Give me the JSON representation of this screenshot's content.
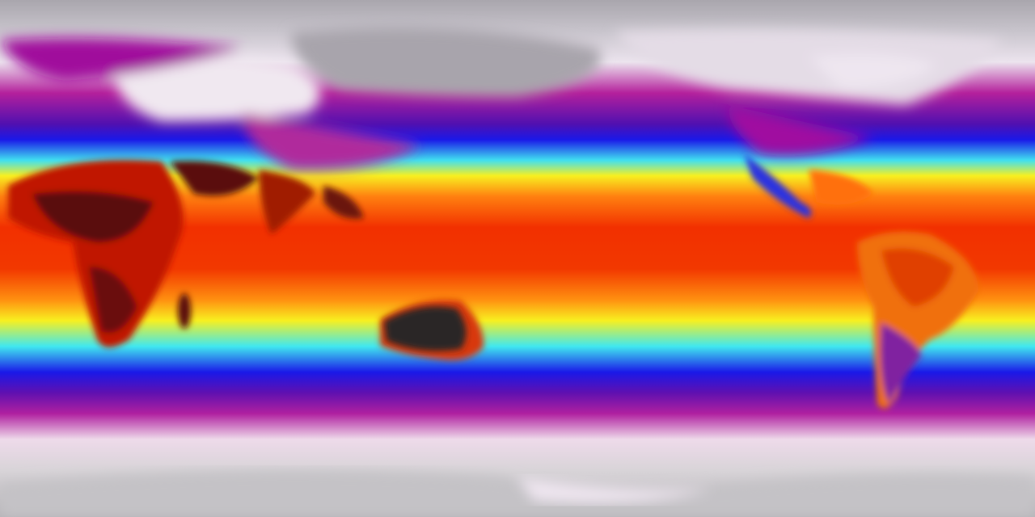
{
  "map": {
    "projection": "equirectangular",
    "variable_shown": "temperature",
    "colors": {
      "polar_gray": "#a8a6ac",
      "cold_white": "#f2e6f0",
      "magenta": "#a0109a",
      "blue": "#1a10e0",
      "cyan": "#40e8f0",
      "yellow": "#f8f020",
      "orange": "#ff7010",
      "red": "#ee2800",
      "hot_dark": "#3a1010",
      "australia_interior": "#2a2626"
    }
  }
}
